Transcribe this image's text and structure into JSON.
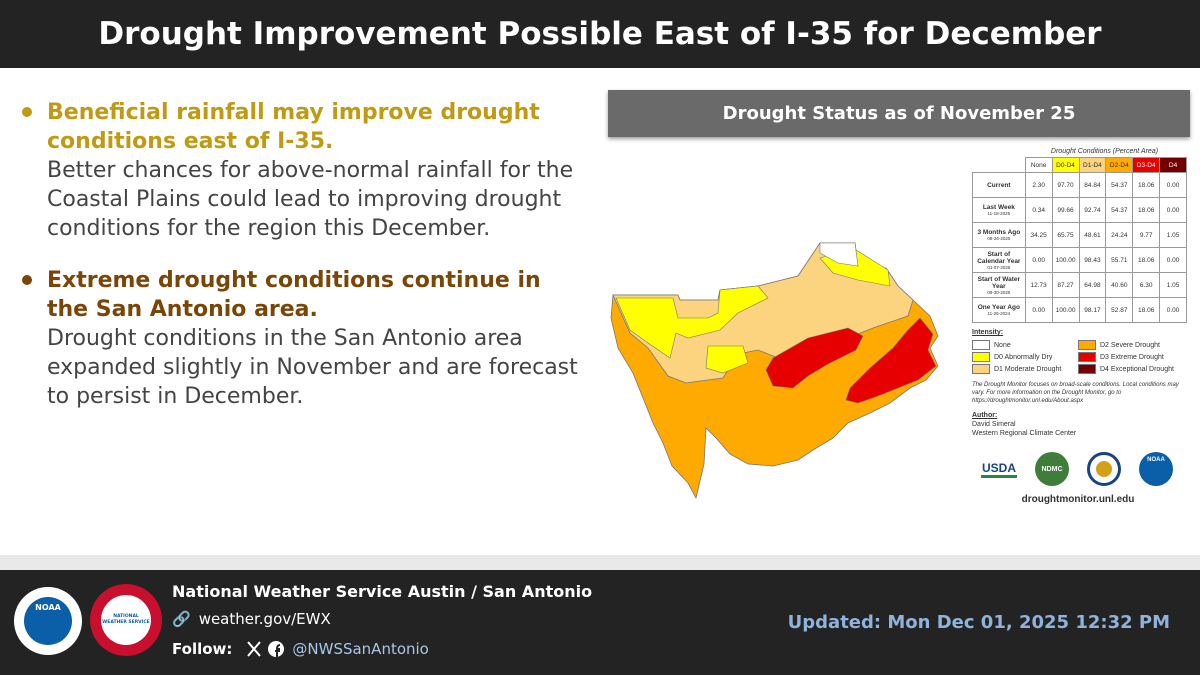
{
  "header": {
    "title": "Drought Improvement Possible East of I-35 for December"
  },
  "bullets": [
    {
      "heading": "Beneficial rainfall may improve drought conditions east of I-35.",
      "body": "Better chances for above-normal rainfall for the Coastal Plains could lead to improving drought conditions for the region this December.",
      "color": "#c09a12"
    },
    {
      "heading": "Extreme drought conditions continue in the San Antonio area.",
      "body": "Drought conditions in the San Antonio area expanded slightly in November and are forecast to persist in December.",
      "color": "#7a4608"
    }
  ],
  "panel": {
    "title": "Drought Status as of November 25"
  },
  "table": {
    "caption": "Drought Conditions (Percent Area)",
    "columns": [
      "None",
      "D0-D4",
      "D1-D4",
      "D2-D4",
      "D3-D4",
      "D4"
    ],
    "column_colors": [
      "#ffffff",
      "#ffff00",
      "#fcd37f",
      "#ffaa00",
      "#e60000",
      "#730000"
    ],
    "rows": [
      {
        "label": "Current",
        "date": null,
        "cells": [
          "2.30",
          "97.70",
          "84.84",
          "54.37",
          "18.06",
          "0.00"
        ]
      },
      {
        "label": "Last Week",
        "date": "11-18-2025",
        "cells": [
          "0.34",
          "99.66",
          "92.74",
          "54.37",
          "18.06",
          "0.00"
        ]
      },
      {
        "label": "3 Months Ago",
        "date": "08-26-2025",
        "cells": [
          "34.25",
          "65.75",
          "48.61",
          "24.24",
          "9.77",
          "1.05"
        ]
      },
      {
        "label": "Start of Calendar Year",
        "date": "01-07-2025",
        "cells": [
          "0.00",
          "100.00",
          "98.43",
          "55.71",
          "18.06",
          "0.00"
        ]
      },
      {
        "label": "Start of Water Year",
        "date": "09-30-2025",
        "cells": [
          "12.73",
          "87.27",
          "64.98",
          "40.60",
          "6.30",
          "1.05"
        ]
      },
      {
        "label": "One Year Ago",
        "date": "11-26-2024",
        "cells": [
          "0.00",
          "100.00",
          "98.17",
          "52.87",
          "18.06",
          "0.00"
        ]
      }
    ]
  },
  "legend": {
    "title": "Intensity:",
    "items": [
      {
        "label": "None",
        "color": "#ffffff"
      },
      {
        "label": "D2 Severe Drought",
        "color": "#ffaa00"
      },
      {
        "label": "D0 Abnormally Dry",
        "color": "#ffff00"
      },
      {
        "label": "D3 Extreme Drought",
        "color": "#e60000"
      },
      {
        "label": "D1 Moderate Drought",
        "color": "#fcd37f"
      },
      {
        "label": "D4 Exceptional Drought",
        "color": "#730000"
      }
    ]
  },
  "note": "The Drought Monitor focuses on broad-scale conditions. Local conditions may vary. For more information on the Drought Monitor, go to https://droughtmonitor.unl.edu/About.aspx",
  "author": {
    "label": "Author:",
    "name": "David Simeral",
    "org": "Western Regional Climate Center"
  },
  "logos": [
    "USDA",
    "NDMC",
    "NOAA"
  ],
  "site": "droughtmonitor.unl.edu",
  "footer": {
    "office": "National Weather Service Austin / San Antonio",
    "url": "weather.gov/EWX",
    "follow": "Follow:",
    "handle": "@NWSSanAntonio",
    "noaa": "NOAA",
    "nws": "NATIONAL WEATHER SERVICE",
    "updated": "Updated: Mon Dec 01, 2025 12:32 PM"
  }
}
